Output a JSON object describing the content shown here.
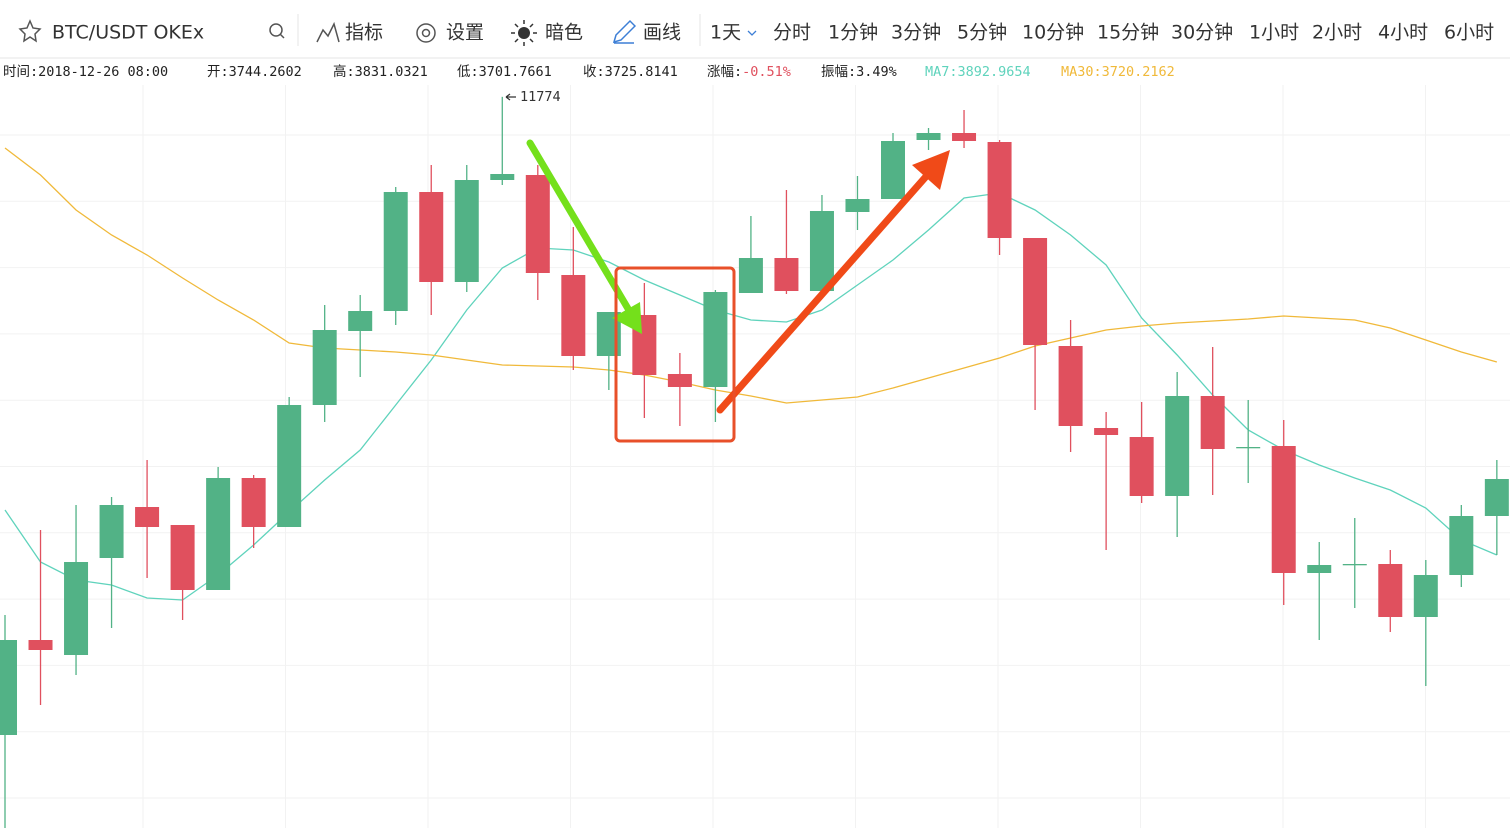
{
  "toolbar": {
    "symbol": "BTC/USDT OKEx",
    "tools": [
      "指标",
      "设置",
      "暗色",
      "画线"
    ],
    "intervals": [
      "1天",
      "分时",
      "1分钟",
      "3分钟",
      "5分钟",
      "10分钟",
      "15分钟",
      "30分钟",
      "1小时",
      "2小时",
      "4小时",
      "6小时"
    ]
  },
  "info": [
    {
      "label": "时间:",
      "value": "2018-12-26 08:00"
    },
    {
      "label": "开:",
      "value": "3744.2602"
    },
    {
      "label": "高:",
      "value": "3831.0321"
    },
    {
      "label": "低:",
      "value": "3701.7661"
    },
    {
      "label": "收:",
      "value": "3725.8141"
    },
    {
      "label": "涨幅:",
      "value": "-0.51%"
    },
    {
      "label": "振幅:",
      "value": "3.49%"
    },
    {
      "label": "MA7:",
      "value": "3892.9654"
    },
    {
      "label": "MA30:",
      "value": "3720.2162"
    }
  ],
  "chart_data": {
    "type": "candlestick",
    "up_color": "#52b286",
    "down_color": "#e0505e",
    "ylim": [
      3000,
      11916
    ],
    "open": [
      4116,
      5256,
      5076,
      6240,
      6852,
      6636,
      5856,
      7200,
      6612,
      8076,
      8964,
      9204,
      10632,
      9552,
      10776,
      10836,
      9636,
      8664,
      9156,
      8448,
      8292,
      9420,
      9840,
      9444,
      10392,
      10548,
      11256,
      11340,
      11232,
      10080,
      8784,
      7800,
      7692,
      6984,
      8184,
      7560,
      7584,
      6060,
      6156,
      6168,
      5532,
      6036,
      6744
    ],
    "high": [
      5556,
      6576,
      6876,
      6972,
      7416,
      6636,
      7332,
      7236,
      8172,
      9276,
      9396,
      10692,
      10956,
      10956,
      11774,
      10956,
      10212,
      9192,
      9540,
      8700,
      9456,
      10344,
      10656,
      10596,
      10824,
      11340,
      11400,
      11616,
      11256,
      10080,
      9096,
      7992,
      8112,
      8472,
      8772,
      8136,
      7896,
      6432,
      6720,
      6336,
      6216,
      6876,
      7416
    ],
    "low": [
      3000,
      4476,
      4836,
      5400,
      6000,
      5496,
      5856,
      6360,
      6612,
      7872,
      8412,
      9036,
      9156,
      9432,
      10716,
      9336,
      8496,
      8256,
      7920,
      7824,
      7872,
      9420,
      9408,
      9444,
      10176,
      10548,
      11136,
      11160,
      9876,
      8016,
      7512,
      6336,
      6900,
      6492,
      6996,
      7140,
      5676,
      5256,
      5640,
      5352,
      4704,
      5892,
      6276
    ],
    "close": [
      5256,
      5136,
      6192,
      6876,
      6612,
      5856,
      7200,
      6612,
      8076,
      8976,
      9204,
      10632,
      9552,
      10776,
      10848,
      9660,
      8664,
      9192,
      8436,
      8292,
      9432,
      9840,
      9444,
      10404,
      10548,
      11244,
      11340,
      11244,
      10080,
      8796,
      7824,
      7716,
      6984,
      8184,
      7548,
      7572,
      6060,
      6156,
      6168,
      5532,
      6036,
      6744,
      7188
    ],
    "series": [
      {
        "name": "MA7",
        "color": "#5fd3bc",
        "values": [
          6816,
          6192,
          5976,
          5916,
          5760,
          5736,
          6036,
          6396,
          6792,
          7176,
          7536,
          8076,
          8616,
          9216,
          9720,
          9960,
          9936,
          9792,
          9576,
          9396,
          9216,
          9096,
          9072,
          9216,
          9516,
          9816,
          10176,
          10560,
          10620,
          10416,
          10116,
          9756,
          9120,
          8676,
          8196,
          7776,
          7536,
          7356,
          7200,
          7056,
          6840,
          6456,
          6276
        ]
      },
      {
        "name": "MA30",
        "color": "#f0b93a",
        "values": [
          11160,
          10836,
          10416,
          10116,
          9876,
          9600,
          9336,
          9096,
          8820,
          8760,
          8736,
          8712,
          8676,
          8616,
          8556,
          8544,
          8532,
          8496,
          8436,
          8352,
          8256,
          8184,
          8100,
          8136,
          8172,
          8280,
          8400,
          8520,
          8640,
          8784,
          8880,
          8976,
          9024,
          9060,
          9084,
          9108,
          9144,
          9120,
          9096,
          9000,
          8856,
          8712,
          8592
        ]
      }
    ]
  }
}
